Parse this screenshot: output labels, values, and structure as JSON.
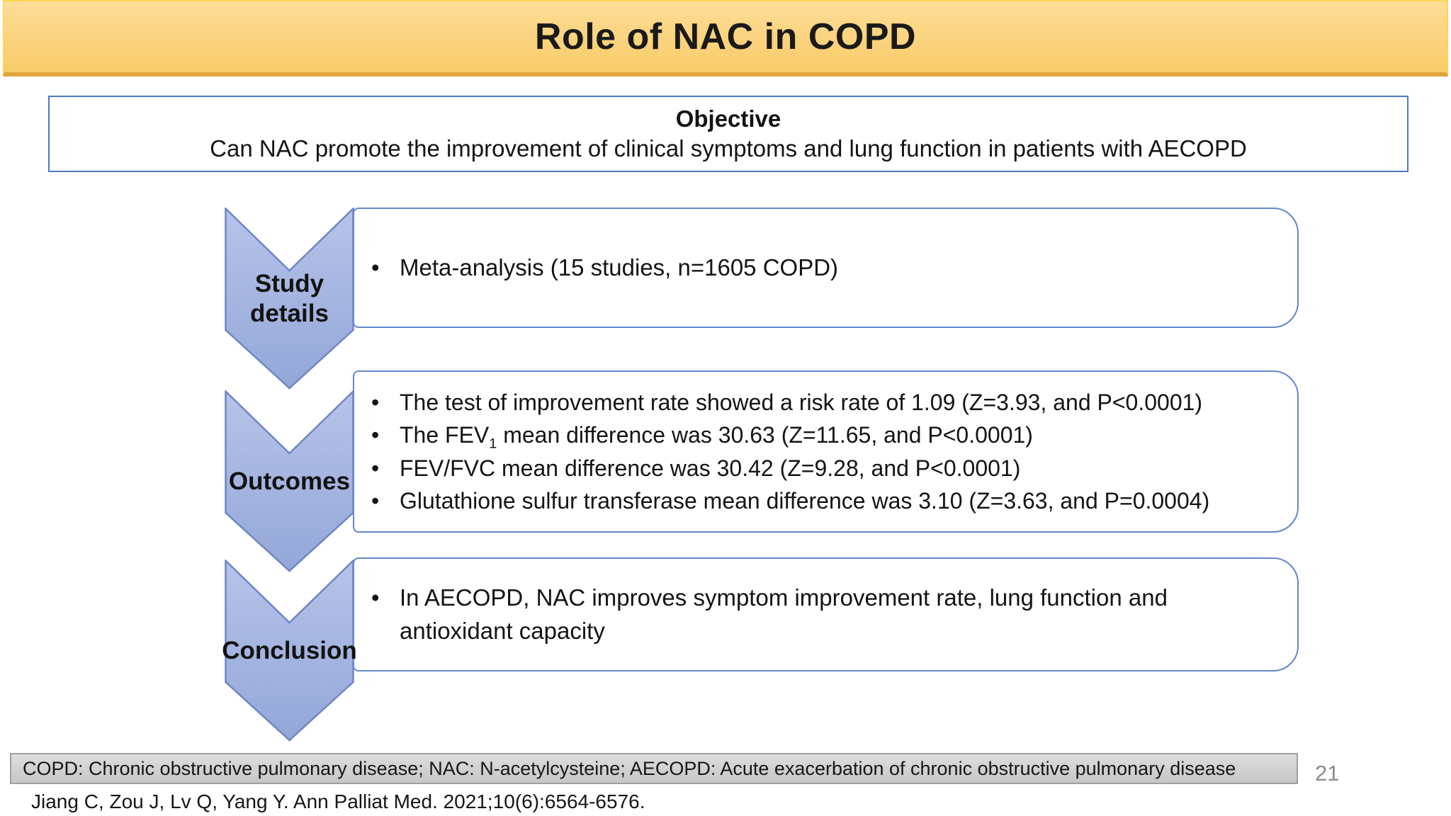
{
  "theme": {
    "banner_gradient_top": "#fcdd97",
    "banner_gradient_mid": "#fbd37e",
    "banner_gradient_bottom": "#f9cc68",
    "banner_border": "#ffd451",
    "banner_bottom_edge": "#dfa53c",
    "chevron_fill_top": "#b7c3e9",
    "chevron_fill_bottom": "#93a7d8",
    "chevron_border": "#6f86c4",
    "box_border": "#6288cb",
    "objective_border": "#4d79c6",
    "footnote_bg_top": "#dedede",
    "footnote_bg_bottom": "#c6c6c6",
    "footnote_border": "#9f9f9f",
    "text_color": "#141414",
    "page_number_color": "#8c8c8c"
  },
  "slide": {
    "title": "Role of NAC in COPD",
    "objective": {
      "heading": "Objective",
      "question": "Can NAC promote the improvement of clinical symptoms and lung function in patients with AECOPD"
    },
    "process": [
      {
        "label": "Study details",
        "bullets": [
          "Meta-analysis (15 studies, n=1605 COPD)"
        ]
      },
      {
        "label": "Outcomes",
        "bullets": [
          "The test of improvement rate showed a risk rate of 1.09 (Z=3.93, and P<0.0001)",
          "The FEV_{1} mean difference was 30.63 (Z=11.65, and P<0.0001)",
          "FEV/FVC mean difference was 30.42 (Z=9.28, and P<0.0001)",
          "Glutathione sulfur transferase mean difference was 3.10 (Z=3.63, and P=0.0004)"
        ]
      },
      {
        "label": "Conclusion",
        "bullets": [
          "In AECOPD, NAC improves symptom improvement rate, lung function and antioxidant capacity"
        ]
      }
    ],
    "footnote": "COPD: Chronic obstructive pulmonary disease; NAC: N-acetylcysteine; AECOPD: Acute exacerbation of chronic obstructive pulmonary disease",
    "citation": "Jiang C, Zou J, Lv Q, Yang Y. Ann Palliat Med. 2021;10(6):6564-6576.",
    "page_number": "21"
  }
}
